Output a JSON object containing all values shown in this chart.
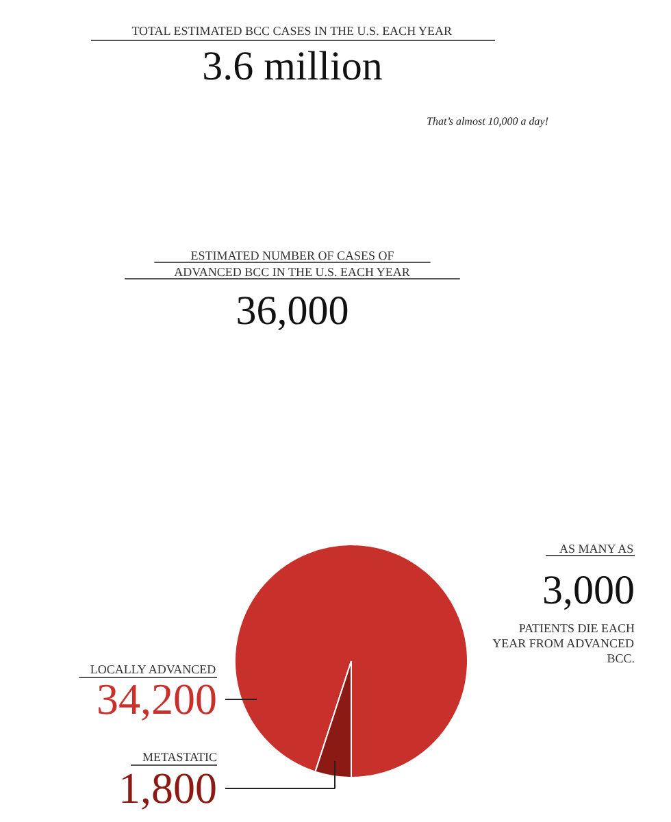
{
  "chart_data": {
    "type": "pie",
    "title": "TOTAL ESTIMATED BCC CASES IN THE U.S. EACH YEAR",
    "categories": [
      "LOCALLY ADVANCED",
      "METASTATIC"
    ],
    "values": [
      34200,
      1800
    ],
    "colors": [
      "#c8302b",
      "#8b1a14"
    ],
    "value_labels": [
      "34,200",
      "1,800"
    ],
    "annotations": [
      "3.6 million",
      "That’s almost 10,000 a day!",
      "ESTIMATED NUMBER OF CASES OF ADVANCED BCC IN THE U.S. EACH YEAR",
      "36,000",
      "AS MANY AS",
      "3,000",
      "PATIENTS DIE EACH YEAR FROM ADVANCED BCC."
    ]
  }
}
